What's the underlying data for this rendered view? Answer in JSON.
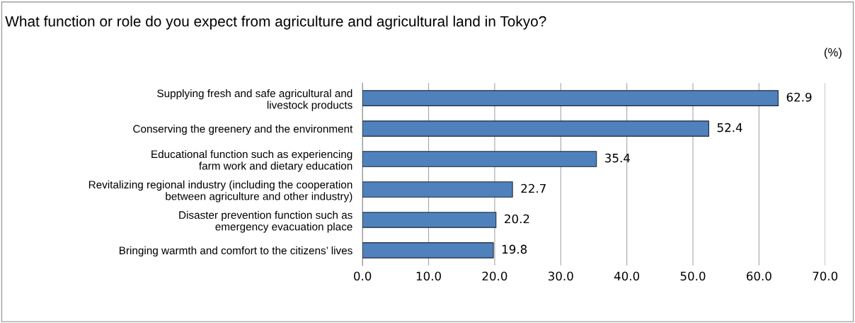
{
  "chart_data": {
    "type": "bar",
    "orientation": "horizontal",
    "title": "What function or role do you expect from agriculture and agricultural land in Tokyo?",
    "annotations": [
      "(%)"
    ],
    "categories": [
      "Supplying fresh and safe agricultural and\nlivestock products",
      "Conserving the greenery and the environment",
      "Educational function such as experiencing\nfarm work and dietary education",
      "Revitalizing regional industry (including the cooperation\nbetween agriculture and other industry)",
      "Disaster prevention function such as\nemergency evacuation place",
      "Bringing warmth and comfort to the citizens’ lives"
    ],
    "values": [
      62.9,
      52.4,
      35.4,
      22.7,
      20.2,
      19.8
    ],
    "color": "#4f81bd",
    "xlim": [
      0,
      70
    ],
    "xticks": [
      {
        "value": 0,
        "label": "0.0"
      },
      {
        "value": 10,
        "label": "10.0"
      },
      {
        "value": 20,
        "label": "20.0"
      },
      {
        "value": 30,
        "label": "30.0"
      },
      {
        "value": 40,
        "label": "40.0"
      },
      {
        "value": 50,
        "label": "50.0"
      },
      {
        "value": 60,
        "label": "60.0"
      },
      {
        "value": 70,
        "label": "70.0"
      }
    ],
    "grid": "x",
    "data_labels": true,
    "legend": false
  }
}
